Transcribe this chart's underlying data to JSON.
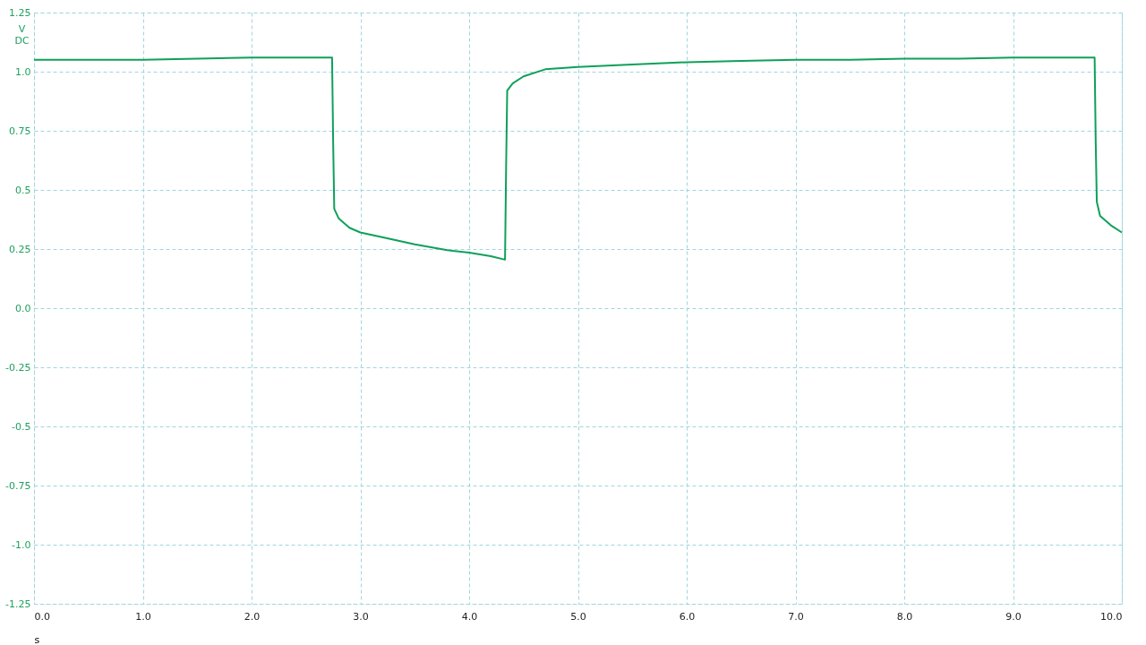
{
  "chart_data": {
    "type": "line",
    "xlabel": "s",
    "ylabel": "V DC",
    "xlim": [
      0,
      10
    ],
    "ylim": [
      -1.25,
      1.25
    ],
    "xticks": [
      {
        "value": 0,
        "label": "0.0"
      },
      {
        "value": 1,
        "label": "1.0"
      },
      {
        "value": 2,
        "label": "2.0"
      },
      {
        "value": 3,
        "label": "3.0"
      },
      {
        "value": 4,
        "label": "4.0"
      },
      {
        "value": 5,
        "label": "5.0"
      },
      {
        "value": 6,
        "label": "6.0"
      },
      {
        "value": 7,
        "label": "7.0"
      },
      {
        "value": 8,
        "label": "8.0"
      },
      {
        "value": 9,
        "label": "9.0"
      },
      {
        "value": 10,
        "label": "10.0"
      }
    ],
    "yticks": [
      -1.25,
      {
        "value": -1,
        "label": "-1.0"
      },
      -0.75,
      -0.5,
      -0.25,
      {
        "value": 0,
        "label": "0.0"
      },
      0.25,
      0.5,
      0.75,
      {
        "value": 1,
        "label": "1.0"
      },
      1.25
    ],
    "grid": true,
    "line_style": "solid",
    "marker": "none",
    "series": [
      {
        "color": "#0fa05a",
        "x": [
          0,
          0.5,
          1,
          1.5,
          2,
          2.5,
          2.74,
          2.75,
          2.76,
          2.8,
          2.9,
          3.0,
          3.2,
          3.5,
          3.8,
          4.0,
          4.2,
          4.33,
          4.34,
          4.35,
          4.4,
          4.5,
          4.7,
          5.0,
          5.5,
          6,
          6.5,
          7,
          7.5,
          8,
          8.5,
          9,
          9.5,
          9.75,
          9.76,
          9.77,
          9.8,
          9.9,
          10
        ],
        "values": [
          1.05,
          1.05,
          1.05,
          1.055,
          1.06,
          1.06,
          1.06,
          0.7,
          0.42,
          0.38,
          0.34,
          0.32,
          0.3,
          0.27,
          0.245,
          0.235,
          0.22,
          0.205,
          0.6,
          0.92,
          0.95,
          0.98,
          1.01,
          1.02,
          1.03,
          1.04,
          1.045,
          1.05,
          1.05,
          1.055,
          1.055,
          1.06,
          1.06,
          1.06,
          0.7,
          0.45,
          0.39,
          0.35,
          0.32
        ]
      }
    ]
  }
}
